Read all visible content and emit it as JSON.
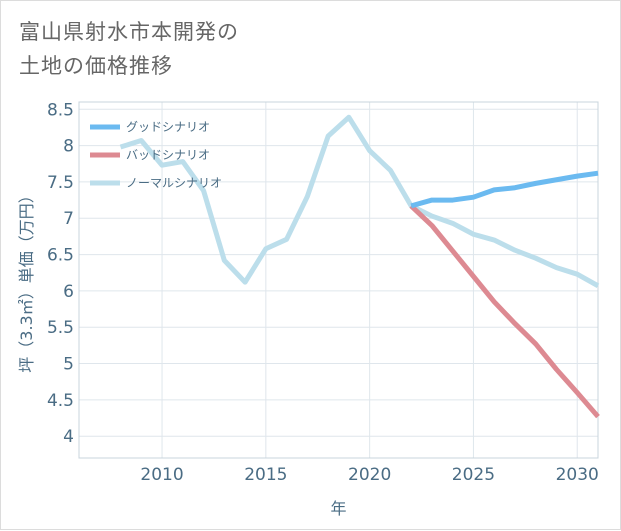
{
  "title_lines": [
    "富山県射水市本開発の",
    "土地の価格推移"
  ],
  "chart_data": {
    "type": "line",
    "xlabel": "年",
    "ylabel": "坪（3.3㎡）単価（万円）",
    "xlim": [
      2006,
      2031
    ],
    "ylim": [
      3.7,
      8.6
    ],
    "x_ticks": [
      2010,
      2015,
      2020,
      2025,
      2030
    ],
    "y_ticks": [
      4,
      4.5,
      5,
      5.5,
      6,
      6.5,
      7,
      7.5,
      8,
      8.5
    ],
    "y_tick_labels": [
      "4",
      "4.5",
      "5",
      "5.5",
      "6",
      "6.5",
      "7",
      "7.5",
      "8",
      "8.5"
    ],
    "grid": true,
    "legend_position": "top-left",
    "series": [
      {
        "name": "グッドシナリオ",
        "color": "#6bbaf0",
        "x": [
          2022,
          2023,
          2024,
          2025,
          2026,
          2027,
          2028,
          2029,
          2030,
          2031
        ],
        "y": [
          7.17,
          7.25,
          7.25,
          7.29,
          7.39,
          7.42,
          7.48,
          7.53,
          7.58,
          7.62
        ]
      },
      {
        "name": "バッドシナリオ",
        "color": "#dd8a92",
        "x": [
          2022,
          2023,
          2024,
          2025,
          2026,
          2027,
          2028,
          2029,
          2030,
          2031
        ],
        "y": [
          7.17,
          6.9,
          6.55,
          6.2,
          5.85,
          5.55,
          5.27,
          4.92,
          4.6,
          4.27
        ]
      },
      {
        "name": "ノーマルシナリオ",
        "color": "#bcdeeb",
        "x": [
          2008,
          2009,
          2010,
          2011,
          2012,
          2013,
          2014,
          2015,
          2016,
          2017,
          2018,
          2019,
          2020,
          2021,
          2022,
          2023,
          2024,
          2025,
          2026,
          2027,
          2028,
          2029,
          2030,
          2031
        ],
        "y": [
          7.98,
          8.07,
          7.73,
          7.78,
          7.38,
          6.42,
          6.12,
          6.58,
          6.71,
          7.3,
          8.13,
          8.39,
          7.93,
          7.66,
          7.17,
          7.03,
          6.93,
          6.78,
          6.7,
          6.56,
          6.45,
          6.32,
          6.23,
          6.07
        ]
      }
    ]
  }
}
